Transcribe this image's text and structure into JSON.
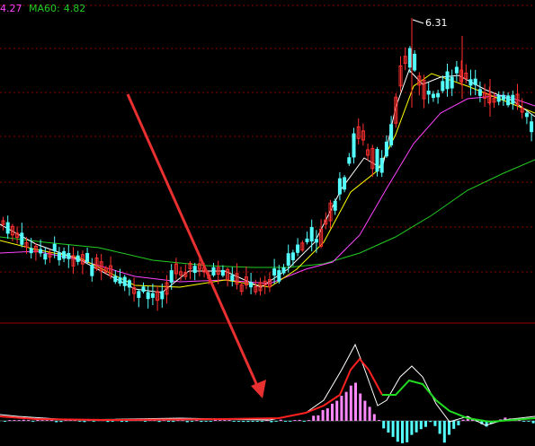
{
  "legend": {
    "ma_partial_value": "4.27",
    "ma60_label": "MA60:",
    "ma60_value": "4.82"
  },
  "peak_label": "6.31",
  "colors": {
    "background": "#000000",
    "up_candle": "#ff3030",
    "down_candle": "#54ffff",
    "ma_fast": "#ffffff",
    "ma_mid": "#ffff00",
    "ma_slow": "#ff44ff",
    "ma60": "#22cc22",
    "grid": "#8b0000",
    "divider": "#9b0000",
    "arrow": "#e83030",
    "macd_pos": "#ff88ff",
    "macd_neg": "#54ffff",
    "dif_line": "#ffffff",
    "signal_line_up": "#ff2020",
    "signal_line_down": "#20dd20"
  },
  "chart_data": [
    {
      "type": "candlestick",
      "title": "",
      "series": [
        {
          "name": "MA60",
          "value": 4.82
        }
      ],
      "high_annotation": 6.31
    },
    {
      "type": "bar",
      "title": "",
      "note": "oscillator histogram with two signal lines"
    }
  ]
}
